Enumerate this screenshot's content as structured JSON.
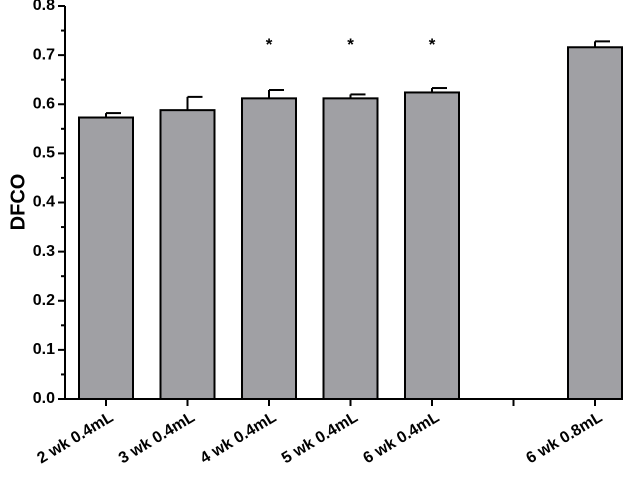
{
  "chart_data": {
    "type": "bar",
    "title": "",
    "xlabel": "",
    "ylabel": "DFCO",
    "ylim": [
      0,
      0.8
    ],
    "yticks": [
      "0.0",
      "0.1",
      "0.2",
      "0.3",
      "0.4",
      "0.5",
      "0.6",
      "0.7",
      "0.8"
    ],
    "grid": false,
    "categories": [
      "2 wk 0.4mL",
      "3 wk 0.4mL",
      "4 wk 0.4mL",
      "5 wk 0.4mL",
      "6 wk 0.4mL",
      "",
      "6 wk 0.8mL"
    ],
    "values": [
      0.573,
      0.588,
      0.612,
      0.612,
      0.624,
      null,
      0.716
    ],
    "errors": [
      0.009,
      0.027,
      0.017,
      0.008,
      0.009,
      null,
      0.012
    ],
    "annotations": [
      "",
      "",
      "*",
      "*",
      "*",
      "",
      ""
    ],
    "bar_color": "#a0a0a4",
    "edge_color": "#000000"
  }
}
